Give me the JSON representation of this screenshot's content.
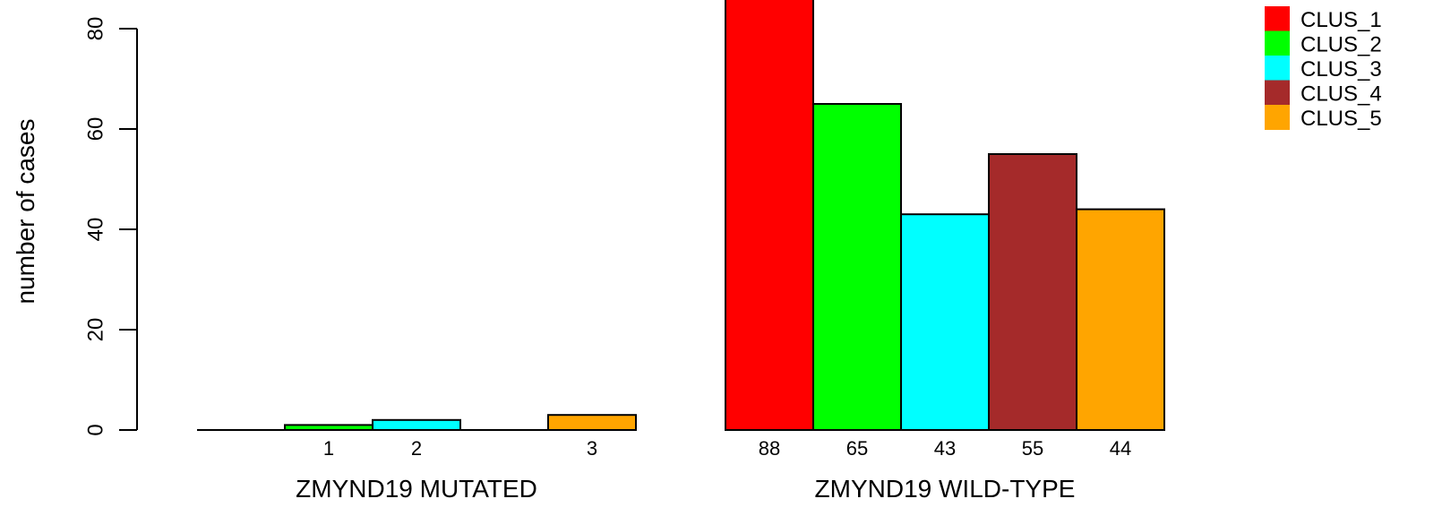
{
  "chart_data": {
    "type": "bar",
    "title": "",
    "ylabel": "number of cases",
    "ylim": [
      0,
      80
    ],
    "yticks": [
      0,
      20,
      40,
      60,
      80
    ],
    "groups": [
      {
        "label": "ZMYND19 MUTATED",
        "values": [
          0,
          1,
          2,
          0,
          3
        ],
        "data_labels": [
          "",
          "1",
          "2",
          "",
          "3"
        ]
      },
      {
        "label": "ZMYND19 WILD-TYPE",
        "values": [
          88,
          65,
          43,
          55,
          44
        ],
        "data_labels": [
          "88",
          "65",
          "43",
          "55",
          "44"
        ]
      }
    ],
    "series": [
      {
        "name": "CLUS_1",
        "color": "#ff0000"
      },
      {
        "name": "CLUS_2",
        "color": "#00ff00"
      },
      {
        "name": "CLUS_3",
        "color": "#00ffff"
      },
      {
        "name": "CLUS_4",
        "color": "#a52a2a"
      },
      {
        "name": "CLUS_5",
        "color": "#ffa500"
      }
    ],
    "legend": "top-right",
    "grid": false
  }
}
